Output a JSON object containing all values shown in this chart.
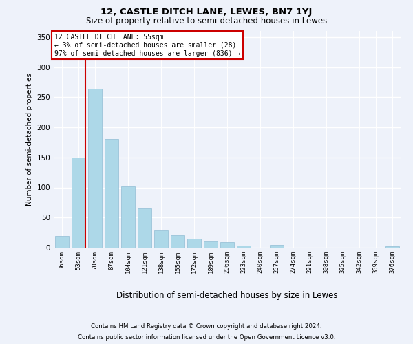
{
  "title1": "12, CASTLE DITCH LANE, LEWES, BN7 1YJ",
  "title2": "Size of property relative to semi-detached houses in Lewes",
  "xlabel": "Distribution of semi-detached houses by size in Lewes",
  "ylabel": "Number of semi-detached properties",
  "categories": [
    "36sqm",
    "53sqm",
    "70sqm",
    "87sqm",
    "104sqm",
    "121sqm",
    "138sqm",
    "155sqm",
    "172sqm",
    "189sqm",
    "206sqm",
    "223sqm",
    "240sqm",
    "257sqm",
    "274sqm",
    "291sqm",
    "308sqm",
    "325sqm",
    "342sqm",
    "359sqm",
    "376sqm"
  ],
  "values": [
    19,
    150,
    264,
    181,
    102,
    65,
    29,
    21,
    15,
    10,
    9,
    4,
    0,
    5,
    0,
    0,
    0,
    0,
    0,
    0,
    2
  ],
  "bar_color": "#add8e8",
  "bar_edge_color": "#90bcd4",
  "property_size": "55sqm",
  "smaller_pct": "3%",
  "smaller_count": 28,
  "larger_pct": "97%",
  "larger_count": 836,
  "vline_color": "#cc0000",
  "vline_x": 1.42,
  "ylim": [
    0,
    360
  ],
  "yticks": [
    0,
    50,
    100,
    150,
    200,
    250,
    300,
    350
  ],
  "footer_line1": "Contains HM Land Registry data © Crown copyright and database right 2024.",
  "footer_line2": "Contains public sector information licensed under the Open Government Licence v3.0.",
  "bg_color": "#eef2fa",
  "plot_bg_color": "#eef2fa"
}
